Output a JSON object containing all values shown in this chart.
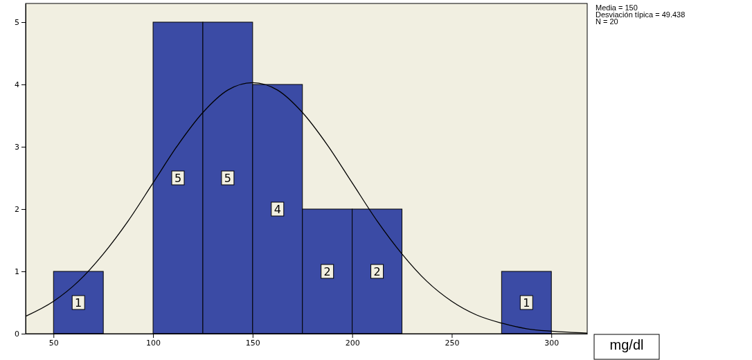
{
  "chart_data": {
    "type": "histogram",
    "bins": [
      50,
      75,
      100,
      125,
      150,
      175,
      200,
      225,
      250,
      275,
      300
    ],
    "values": [
      1,
      0,
      5,
      5,
      4,
      2,
      2,
      0,
      0,
      1
    ],
    "color": "#3b4ba5",
    "value_labels": [
      "1",
      null,
      "5",
      "5",
      "4",
      "2",
      "2",
      null,
      null,
      "1"
    ],
    "series": [
      {
        "type": "line",
        "color": "#000000",
        "x": [
          36,
          50,
          62.5,
          75,
          87.5,
          100,
          112.5,
          125,
          137.5,
          150,
          162.5,
          175,
          187.5,
          200,
          212.5,
          225,
          237.5,
          250,
          262.5,
          275,
          287.5,
          300,
          318
        ],
        "values": [
          0.28,
          0.52,
          0.84,
          1.28,
          1.81,
          2.42,
          3.03,
          3.55,
          3.91,
          4.03,
          3.91,
          3.55,
          3.03,
          2.42,
          1.81,
          1.28,
          0.84,
          0.52,
          0.3,
          0.17,
          0.08,
          0.04,
          0.01
        ]
      }
    ],
    "xlim": [
      36,
      318
    ],
    "ylim": [
      0,
      5.3
    ],
    "xticks": [
      50,
      100,
      150,
      200,
      250,
      300
    ],
    "yticks": [
      0,
      1,
      2,
      3,
      4,
      5
    ],
    "xlabel": "mg/dl",
    "annotations": [
      "Media = 150",
      "Desviación típica = 49.438",
      "N = 20"
    ],
    "grid": false
  }
}
